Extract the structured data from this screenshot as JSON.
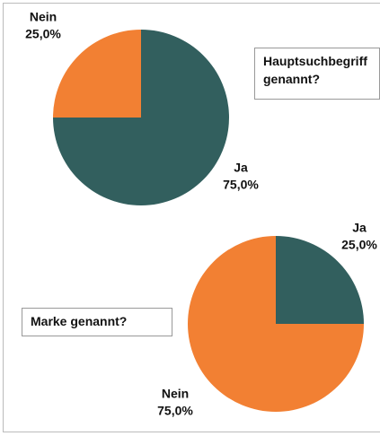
{
  "chart_data": [
    {
      "type": "pie",
      "title": "Hauptsuchbegriff genannt?",
      "categories": [
        "Ja",
        "Nein"
      ],
      "values": [
        75,
        25
      ],
      "value_labels": [
        "75,0%",
        "25,0%"
      ],
      "colors": [
        "#325f5e",
        "#f28033"
      ]
    },
    {
      "type": "pie",
      "title": "Marke genannt?",
      "categories": [
        "Ja",
        "Nein"
      ],
      "values": [
        25,
        75
      ],
      "value_labels": [
        "25,0%",
        "75,0%"
      ],
      "colors": [
        "#325f5e",
        "#f28033"
      ]
    }
  ]
}
